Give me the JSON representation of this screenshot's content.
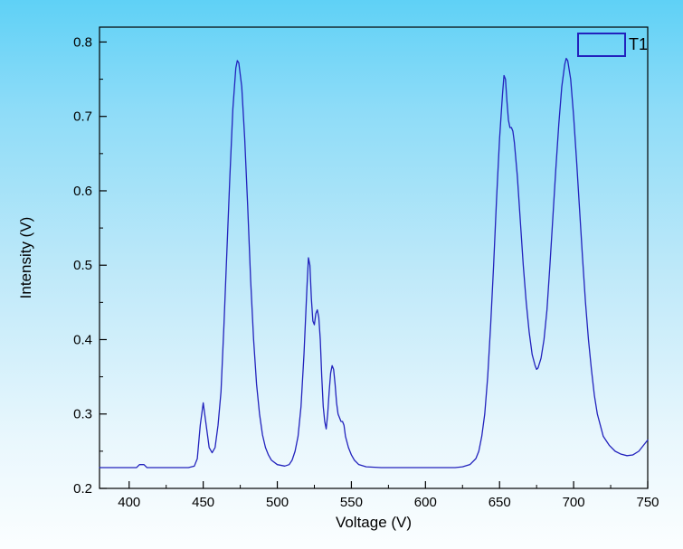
{
  "window": {
    "background_top": "#5fd1f6",
    "background_bottom": "#fbfeff",
    "frame_color": "#000000"
  },
  "legend": {
    "entry_label": "T1",
    "swatch_color": "#2222bd",
    "position": "top-right"
  },
  "chart_data": {
    "type": "line",
    "title": "",
    "xlabel": "Voltage (V)",
    "ylabel": "Intensity (V)",
    "xlim": [
      380,
      750
    ],
    "ylim": [
      0.2,
      0.82
    ],
    "grid": false,
    "x_ticks": [
      400,
      450,
      500,
      550,
      600,
      650,
      700,
      750
    ],
    "x_tick_labels": [
      "400",
      "450",
      "500",
      "550",
      "600",
      "650",
      "700",
      "750"
    ],
    "x_minor_step": 25,
    "y_ticks": [
      0.2,
      0.3,
      0.4,
      0.5,
      0.6,
      0.7,
      0.8
    ],
    "y_tick_labels": [
      "0.2",
      "0.3",
      "0.4",
      "0.5",
      "0.6",
      "0.7",
      "0.8"
    ],
    "y_minor_step": 0.05,
    "legend_position": "top-right",
    "series": [
      {
        "name": "T1",
        "color": "#2222bd",
        "points": [
          [
            380,
            0.228
          ],
          [
            390,
            0.228
          ],
          [
            400,
            0.228
          ],
          [
            405,
            0.228
          ],
          [
            407,
            0.232
          ],
          [
            410,
            0.232
          ],
          [
            412,
            0.228
          ],
          [
            420,
            0.228
          ],
          [
            430,
            0.228
          ],
          [
            440,
            0.228
          ],
          [
            444,
            0.23
          ],
          [
            446,
            0.24
          ],
          [
            448,
            0.285
          ],
          [
            450,
            0.315
          ],
          [
            452,
            0.285
          ],
          [
            454,
            0.255
          ],
          [
            456,
            0.248
          ],
          [
            458,
            0.255
          ],
          [
            460,
            0.285
          ],
          [
            462,
            0.33
          ],
          [
            464,
            0.42
          ],
          [
            466,
            0.52
          ],
          [
            468,
            0.62
          ],
          [
            470,
            0.71
          ],
          [
            472,
            0.765
          ],
          [
            473,
            0.775
          ],
          [
            474,
            0.772
          ],
          [
            476,
            0.74
          ],
          [
            478,
            0.67
          ],
          [
            480,
            0.58
          ],
          [
            482,
            0.48
          ],
          [
            484,
            0.4
          ],
          [
            486,
            0.34
          ],
          [
            488,
            0.3
          ],
          [
            490,
            0.272
          ],
          [
            492,
            0.255
          ],
          [
            494,
            0.245
          ],
          [
            496,
            0.238
          ],
          [
            500,
            0.232
          ],
          [
            505,
            0.23
          ],
          [
            508,
            0.232
          ],
          [
            510,
            0.238
          ],
          [
            512,
            0.25
          ],
          [
            514,
            0.27
          ],
          [
            516,
            0.31
          ],
          [
            518,
            0.38
          ],
          [
            520,
            0.47
          ],
          [
            521,
            0.51
          ],
          [
            522,
            0.5
          ],
          [
            523,
            0.455
          ],
          [
            524,
            0.425
          ],
          [
            525,
            0.42
          ],
          [
            526,
            0.435
          ],
          [
            527,
            0.44
          ],
          [
            528,
            0.43
          ],
          [
            529,
            0.4
          ],
          [
            530,
            0.35
          ],
          [
            531,
            0.31
          ],
          [
            532,
            0.29
          ],
          [
            533,
            0.28
          ],
          [
            534,
            0.3
          ],
          [
            535,
            0.33
          ],
          [
            536,
            0.355
          ],
          [
            537,
            0.365
          ],
          [
            538,
            0.36
          ],
          [
            539,
            0.34
          ],
          [
            540,
            0.315
          ],
          [
            541,
            0.3
          ],
          [
            542,
            0.295
          ],
          [
            543,
            0.29
          ],
          [
            544,
            0.29
          ],
          [
            545,
            0.285
          ],
          [
            546,
            0.27
          ],
          [
            548,
            0.255
          ],
          [
            550,
            0.245
          ],
          [
            552,
            0.238
          ],
          [
            555,
            0.232
          ],
          [
            560,
            0.229
          ],
          [
            570,
            0.228
          ],
          [
            580,
            0.228
          ],
          [
            590,
            0.228
          ],
          [
            600,
            0.228
          ],
          [
            610,
            0.228
          ],
          [
            620,
            0.228
          ],
          [
            625,
            0.229
          ],
          [
            630,
            0.232
          ],
          [
            634,
            0.24
          ],
          [
            636,
            0.25
          ],
          [
            638,
            0.27
          ],
          [
            640,
            0.3
          ],
          [
            642,
            0.35
          ],
          [
            644,
            0.42
          ],
          [
            646,
            0.5
          ],
          [
            648,
            0.59
          ],
          [
            650,
            0.67
          ],
          [
            652,
            0.73
          ],
          [
            653,
            0.755
          ],
          [
            654,
            0.75
          ],
          [
            655,
            0.72
          ],
          [
            656,
            0.695
          ],
          [
            657,
            0.685
          ],
          [
            658,
            0.685
          ],
          [
            659,
            0.68
          ],
          [
            660,
            0.665
          ],
          [
            662,
            0.62
          ],
          [
            664,
            0.56
          ],
          [
            666,
            0.5
          ],
          [
            668,
            0.45
          ],
          [
            670,
            0.41
          ],
          [
            672,
            0.38
          ],
          [
            674,
            0.365
          ],
          [
            675,
            0.36
          ],
          [
            676,
            0.362
          ],
          [
            678,
            0.375
          ],
          [
            680,
            0.4
          ],
          [
            682,
            0.44
          ],
          [
            684,
            0.5
          ],
          [
            686,
            0.565
          ],
          [
            688,
            0.63
          ],
          [
            690,
            0.69
          ],
          [
            692,
            0.74
          ],
          [
            694,
            0.77
          ],
          [
            695,
            0.778
          ],
          [
            696,
            0.775
          ],
          [
            698,
            0.75
          ],
          [
            700,
            0.7
          ],
          [
            702,
            0.64
          ],
          [
            704,
            0.575
          ],
          [
            706,
            0.51
          ],
          [
            708,
            0.45
          ],
          [
            710,
            0.4
          ],
          [
            712,
            0.36
          ],
          [
            714,
            0.325
          ],
          [
            716,
            0.3
          ],
          [
            718,
            0.285
          ],
          [
            720,
            0.27
          ],
          [
            724,
            0.258
          ],
          [
            728,
            0.25
          ],
          [
            732,
            0.246
          ],
          [
            736,
            0.244
          ],
          [
            740,
            0.245
          ],
          [
            744,
            0.25
          ],
          [
            748,
            0.26
          ],
          [
            750,
            0.265
          ]
        ]
      }
    ]
  }
}
